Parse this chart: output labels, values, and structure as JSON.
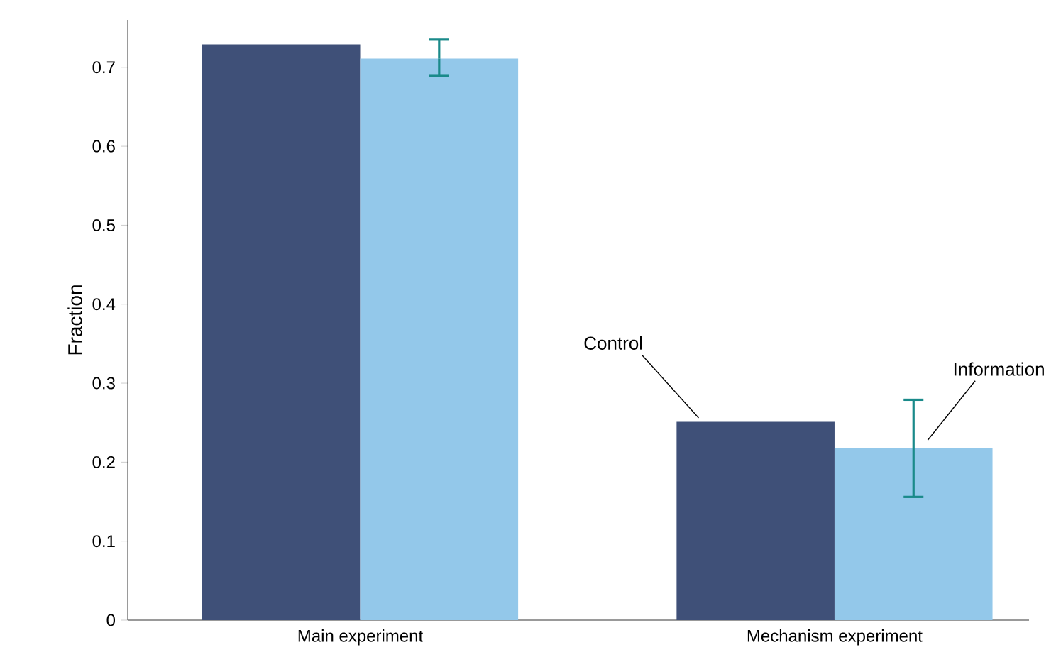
{
  "chart_data": {
    "type": "bar",
    "ylabel": "Fraction",
    "categories": [
      "Main experiment",
      "Mechanism experiment"
    ],
    "series": [
      {
        "name": "Control",
        "color": "#3f5078",
        "values": [
          0.729,
          0.251
        ]
      },
      {
        "name": "Information",
        "color": "#93c8ea",
        "values": [
          0.711,
          0.218
        ],
        "errors": [
          [
            0.689,
            0.735
          ],
          [
            0.156,
            0.279
          ]
        ]
      }
    ],
    "ylim": [
      0,
      0.76
    ],
    "yticks": [
      0,
      0.1,
      0.2,
      0.3,
      0.4,
      0.5,
      0.6,
      0.7
    ],
    "grid": false,
    "legend": false
  }
}
